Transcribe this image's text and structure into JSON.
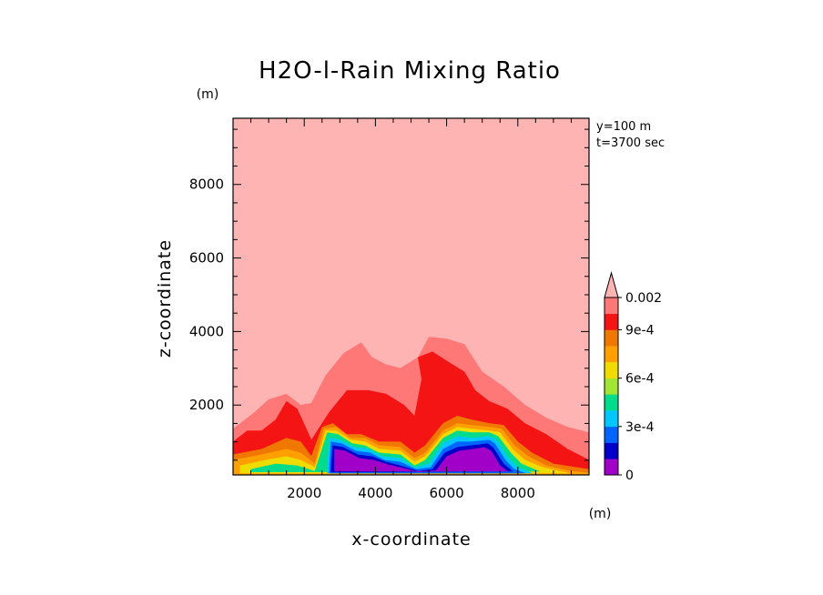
{
  "chart_data": {
    "type": "heatmap",
    "title": "H2O-l-Rain Mixing Ratio",
    "xlabel": "x-coordinate",
    "ylabel": "z-coordinate",
    "x_unit": "(m)",
    "y_unit": "(m)",
    "info": [
      "y=100 m",
      "t=3700 sec"
    ],
    "xlim": [
      0,
      10000
    ],
    "ylim": [
      100,
      9800
    ],
    "x_ticks": [
      "2000",
      "4000",
      "6000",
      "8000"
    ],
    "x_tick_values": [
      2000,
      4000,
      6000,
      8000
    ],
    "y_ticks": [
      "2000",
      "4000",
      "6000",
      "8000"
    ],
    "y_tick_values": [
      2000,
      4000,
      6000,
      8000
    ],
    "colorbar": {
      "levels": [
        0,
        0.0001,
        0.0002,
        0.0003,
        0.0004,
        0.0005,
        0.0006,
        0.0007,
        0.0008,
        0.0009,
        0.001,
        0.002
      ],
      "tick_labels": [
        {
          "value": 0,
          "label": "0"
        },
        {
          "value": 0.0003,
          "label": "3e-4"
        },
        {
          "value": 0.0006,
          "label": "6e-4"
        },
        {
          "value": 0.0009,
          "label": "9e-4"
        },
        {
          "value": 0.002,
          "label": "0.002"
        }
      ],
      "colors": [
        "#a000c8",
        "#0000c8",
        "#0064ff",
        "#00c8ff",
        "#00dc8c",
        "#a0e632",
        "#f0dc00",
        "#ffa000",
        "#f07800",
        "#f51414",
        "#ff7878",
        "#ffb4b4"
      ],
      "extend": "max"
    },
    "regions": [
      {
        "level": 10,
        "color": "#ff7878",
        "points": [
          [
            0,
            1350
          ],
          [
            600,
            1800
          ],
          [
            1000,
            2150
          ],
          [
            1500,
            2300
          ],
          [
            1900,
            2000
          ],
          [
            2200,
            2050
          ],
          [
            2600,
            2800
          ],
          [
            3100,
            3400
          ],
          [
            3600,
            3700
          ],
          [
            3900,
            3300
          ],
          [
            4300,
            3100
          ],
          [
            4700,
            3000
          ],
          [
            5200,
            3300
          ],
          [
            5500,
            3850
          ],
          [
            6000,
            3800
          ],
          [
            6500,
            3650
          ],
          [
            7000,
            2900
          ],
          [
            7600,
            2500
          ],
          [
            8200,
            2000
          ],
          [
            8800,
            1650
          ],
          [
            9400,
            1400
          ],
          [
            10000,
            1250
          ],
          [
            10000,
            100
          ],
          [
            0,
            100
          ]
        ]
      },
      {
        "level": 9,
        "color": "#f51414",
        "points": [
          [
            0,
            1000
          ],
          [
            400,
            1300
          ],
          [
            800,
            1300
          ],
          [
            1200,
            1600
          ],
          [
            1500,
            2100
          ],
          [
            1800,
            1900
          ],
          [
            2200,
            1050
          ],
          [
            2700,
            1800
          ],
          [
            3200,
            2400
          ],
          [
            3800,
            2400
          ],
          [
            4300,
            2300
          ],
          [
            4800,
            2000
          ],
          [
            5100,
            1700
          ],
          [
            5300,
            2700
          ],
          [
            5200,
            3300
          ],
          [
            5600,
            3450
          ],
          [
            6000,
            3200
          ],
          [
            6500,
            2900
          ],
          [
            6800,
            2400
          ],
          [
            7200,
            2100
          ],
          [
            7700,
            1900
          ],
          [
            8200,
            1500
          ],
          [
            8800,
            1200
          ],
          [
            9400,
            800
          ],
          [
            10000,
            500
          ],
          [
            10000,
            100
          ],
          [
            0,
            100
          ]
        ]
      },
      {
        "level": 8,
        "color": "#f07800",
        "points": [
          [
            0,
            650
          ],
          [
            800,
            800
          ],
          [
            1500,
            1100
          ],
          [
            1900,
            1000
          ],
          [
            2200,
            600
          ],
          [
            2500,
            1400
          ],
          [
            2800,
            1500
          ],
          [
            3200,
            1200
          ],
          [
            3600,
            1200
          ],
          [
            4100,
            1000
          ],
          [
            4700,
            1000
          ],
          [
            5100,
            700
          ],
          [
            5400,
            900
          ],
          [
            5900,
            1500
          ],
          [
            6300,
            1700
          ],
          [
            6700,
            1600
          ],
          [
            7200,
            1500
          ],
          [
            7600,
            1450
          ],
          [
            8000,
            1000
          ],
          [
            8400,
            700
          ],
          [
            9000,
            400
          ],
          [
            10000,
            250
          ],
          [
            10000,
            100
          ],
          [
            0,
            100
          ]
        ]
      },
      {
        "level": 7,
        "color": "#ffa000",
        "points": [
          [
            0,
            500
          ],
          [
            800,
            650
          ],
          [
            1500,
            800
          ],
          [
            1900,
            700
          ],
          [
            2300,
            400
          ],
          [
            2550,
            1350
          ],
          [
            2900,
            1400
          ],
          [
            3300,
            1100
          ],
          [
            3700,
            1100
          ],
          [
            4100,
            900
          ],
          [
            4700,
            850
          ],
          [
            5100,
            550
          ],
          [
            5400,
            700
          ],
          [
            5900,
            1300
          ],
          [
            6300,
            1500
          ],
          [
            6700,
            1450
          ],
          [
            7200,
            1400
          ],
          [
            7550,
            1350
          ],
          [
            7900,
            900
          ],
          [
            8300,
            600
          ],
          [
            8800,
            350
          ],
          [
            9500,
            200
          ],
          [
            10000,
            150
          ],
          [
            10000,
            100
          ],
          [
            0,
            100
          ]
        ]
      },
      {
        "level": 6,
        "color": "#f0dc00",
        "points": [
          [
            200,
            350
          ],
          [
            900,
            500
          ],
          [
            1500,
            600
          ],
          [
            1900,
            500
          ],
          [
            2300,
            300
          ],
          [
            2600,
            1300
          ],
          [
            2900,
            1300
          ],
          [
            3300,
            1050
          ],
          [
            3700,
            1000
          ],
          [
            4100,
            800
          ],
          [
            4700,
            750
          ],
          [
            5100,
            450
          ],
          [
            5400,
            600
          ],
          [
            5900,
            1200
          ],
          [
            6300,
            1400
          ],
          [
            6700,
            1350
          ],
          [
            7200,
            1300
          ],
          [
            7500,
            1250
          ],
          [
            7850,
            800
          ],
          [
            8200,
            500
          ],
          [
            8700,
            300
          ],
          [
            9400,
            150
          ],
          [
            200,
            150
          ]
        ]
      },
      {
        "level": 4,
        "color": "#00dc8c",
        "points": [
          [
            500,
            250
          ],
          [
            1200,
            400
          ],
          [
            1800,
            350
          ],
          [
            2300,
            200
          ],
          [
            2650,
            1250
          ],
          [
            2950,
            1200
          ],
          [
            3350,
            950
          ],
          [
            3700,
            900
          ],
          [
            4100,
            700
          ],
          [
            4700,
            650
          ],
          [
            5100,
            350
          ],
          [
            5400,
            500
          ],
          [
            5900,
            1100
          ],
          [
            6300,
            1300
          ],
          [
            6700,
            1250
          ],
          [
            7200,
            1250
          ],
          [
            7450,
            1150
          ],
          [
            7800,
            700
          ],
          [
            8100,
            400
          ],
          [
            8600,
            200
          ],
          [
            500,
            180
          ]
        ]
      },
      {
        "level": 3,
        "color": "#00c8ff",
        "points": [
          [
            2700,
            1100
          ],
          [
            3000,
            1050
          ],
          [
            3400,
            850
          ],
          [
            3800,
            800
          ],
          [
            4200,
            600
          ],
          [
            4700,
            550
          ],
          [
            5100,
            300
          ],
          [
            5500,
            400
          ],
          [
            5900,
            950
          ],
          [
            6300,
            1150
          ],
          [
            6700,
            1100
          ],
          [
            7200,
            1150
          ],
          [
            7400,
            1050
          ],
          [
            7700,
            600
          ],
          [
            8000,
            300
          ],
          [
            8400,
            150
          ],
          [
            2650,
            150
          ]
        ]
      },
      {
        "level": 2,
        "color": "#0064ff",
        "points": [
          [
            2750,
            1000
          ],
          [
            3050,
            950
          ],
          [
            3450,
            750
          ],
          [
            3850,
            700
          ],
          [
            4250,
            500
          ],
          [
            4700,
            450
          ],
          [
            5150,
            250
          ],
          [
            5550,
            300
          ],
          [
            5900,
            800
          ],
          [
            6300,
            1000
          ],
          [
            6700,
            1000
          ],
          [
            7200,
            1050
          ],
          [
            7350,
            950
          ],
          [
            7650,
            500
          ],
          [
            7900,
            250
          ],
          [
            8200,
            150
          ],
          [
            2700,
            150
          ]
        ]
      },
      {
        "level": 1,
        "color": "#0000c8",
        "points": [
          [
            2800,
            900
          ],
          [
            3100,
            850
          ],
          [
            3500,
            650
          ],
          [
            3900,
            600
          ],
          [
            4300,
            450
          ],
          [
            4700,
            350
          ],
          [
            5200,
            200
          ],
          [
            5600,
            250
          ],
          [
            5950,
            700
          ],
          [
            6300,
            850
          ],
          [
            6700,
            900
          ],
          [
            7150,
            950
          ],
          [
            7300,
            850
          ],
          [
            7600,
            400
          ],
          [
            7850,
            200
          ],
          [
            2750,
            180
          ]
        ]
      },
      {
        "level": 0,
        "color": "#a000c8",
        "points": [
          [
            2850,
            800
          ],
          [
            3150,
            750
          ],
          [
            3550,
            550
          ],
          [
            3950,
            500
          ],
          [
            4350,
            380
          ],
          [
            4700,
            300
          ],
          [
            5200,
            180
          ],
          [
            5700,
            220
          ],
          [
            6000,
            600
          ],
          [
            6350,
            750
          ],
          [
            6750,
            800
          ],
          [
            7050,
            850
          ],
          [
            7250,
            750
          ],
          [
            7500,
            350
          ],
          [
            7700,
            200
          ],
          [
            2850,
            200
          ]
        ]
      }
    ]
  }
}
